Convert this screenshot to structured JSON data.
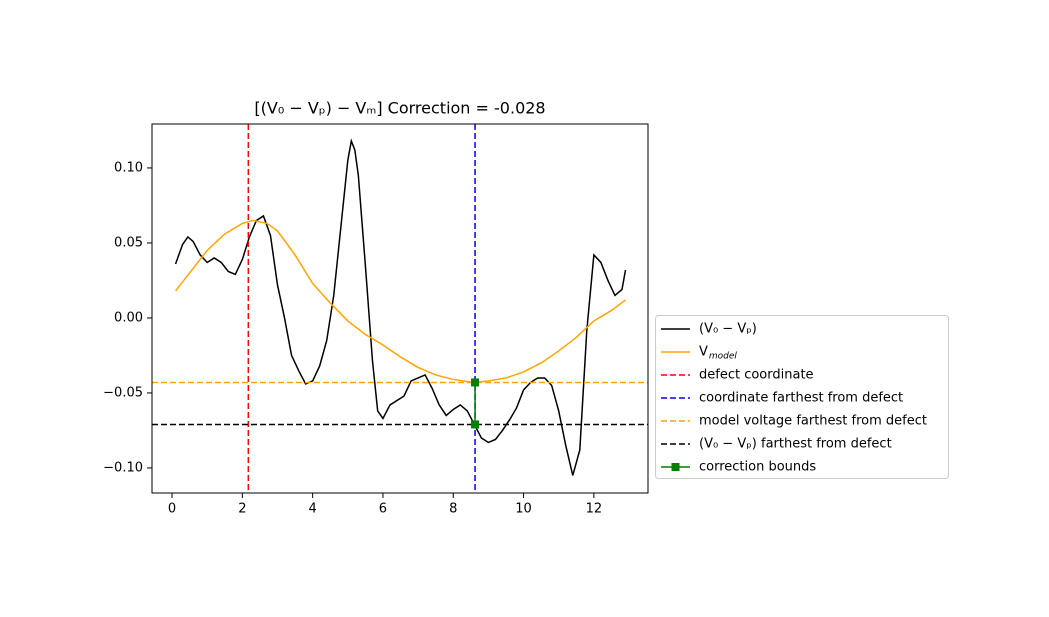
{
  "chart_data": {
    "type": "line",
    "title": "[(V₀ − Vₚ) − Vₘ] Correction = -0.028",
    "xlim": [
      -0.57,
      13.54
    ],
    "ylim": [
      -0.1167,
      0.1293
    ],
    "xticks": [
      0,
      2,
      4,
      6,
      8,
      10,
      12
    ],
    "yticks": [
      {
        "value": 0.1,
        "label": "0.10"
      },
      {
        "value": 0.05,
        "label": "0.05"
      },
      {
        "value": 0,
        "label": "0.00"
      },
      {
        "value": -0.05,
        "label": "−0.05"
      },
      {
        "value": -0.1,
        "label": "−0.10"
      }
    ],
    "grid": false,
    "legend": "right",
    "series": [
      {
        "name": "(V₀ − Vₚ)",
        "color": "#000000",
        "x": [
          0.1,
          0.3,
          0.45,
          0.6,
          0.8,
          1.0,
          1.2,
          1.4,
          1.6,
          1.8,
          2.0,
          2.2,
          2.4,
          2.6,
          2.8,
          3.0,
          3.2,
          3.4,
          3.6,
          3.8,
          4.0,
          4.2,
          4.4,
          4.6,
          4.8,
          5.0,
          5.1,
          5.2,
          5.3,
          5.5,
          5.7,
          5.85,
          6.0,
          6.2,
          6.4,
          6.6,
          6.8,
          7.0,
          7.2,
          7.4,
          7.6,
          7.8,
          8.0,
          8.2,
          8.4,
          8.6,
          8.8,
          9.0,
          9.2,
          9.4,
          9.6,
          9.8,
          10.0,
          10.2,
          10.4,
          10.6,
          10.8,
          11.0,
          11.2,
          11.4,
          11.6,
          11.8,
          12.0,
          12.2,
          12.4,
          12.6,
          12.8,
          12.9
        ],
        "values": [
          0.036,
          0.049,
          0.054,
          0.051,
          0.042,
          0.037,
          0.04,
          0.037,
          0.031,
          0.029,
          0.039,
          0.054,
          0.065,
          0.068,
          0.055,
          0.022,
          0.0,
          -0.025,
          -0.035,
          -0.044,
          -0.042,
          -0.032,
          -0.015,
          0.015,
          0.06,
          0.105,
          0.118,
          0.112,
          0.095,
          0.035,
          -0.028,
          -0.062,
          -0.067,
          -0.058,
          -0.055,
          -0.052,
          -0.042,
          -0.04,
          -0.038,
          -0.047,
          -0.058,
          -0.065,
          -0.061,
          -0.058,
          -0.062,
          -0.071,
          -0.08,
          -0.083,
          -0.081,
          -0.075,
          -0.068,
          -0.06,
          -0.048,
          -0.043,
          -0.04,
          -0.04,
          -0.045,
          -0.062,
          -0.085,
          -0.105,
          -0.088,
          -0.008,
          0.042,
          0.037,
          0.025,
          0.015,
          0.019,
          0.032
        ]
      },
      {
        "name": "V",
        "subscript": "model",
        "color": "#ffa500",
        "x": [
          0.1,
          0.5,
          1,
          1.5,
          2,
          2.3,
          2.7,
          3,
          3.5,
          4,
          4.5,
          5,
          5.5,
          6,
          6.5,
          7,
          7.5,
          8,
          8.6,
          9,
          9.5,
          10,
          10.5,
          11,
          11.5,
          12,
          12.5,
          12.9
        ],
        "values": [
          0.018,
          0.03,
          0.045,
          0.056,
          0.063,
          0.065,
          0.063,
          0.058,
          0.042,
          0.023,
          0.01,
          -0.002,
          -0.011,
          -0.018,
          -0.026,
          -0.033,
          -0.038,
          -0.041,
          -0.043,
          -0.042,
          -0.04,
          -0.036,
          -0.03,
          -0.022,
          -0.013,
          -0.002,
          0.005,
          0.012
        ]
      },
      {
        "name": "defect coordinate",
        "color": "#ff0000",
        "kind": "vline",
        "dashed": true,
        "value": 2.17
      },
      {
        "name": "coordinate farthest from defect",
        "color": "#0000ff",
        "kind": "vline",
        "dashed": true,
        "value": 8.62
      },
      {
        "name": "model voltage farthest from defect",
        "color": "#ffa500",
        "kind": "hline",
        "dashed": true,
        "value": -0.043
      },
      {
        "name": "(V₀ − Vₚ) farthest from defect",
        "color": "#000000",
        "kind": "hline",
        "dashed": true,
        "value": -0.071
      },
      {
        "name": "correction bounds",
        "color": "#008000",
        "marker": "square",
        "x": [
          8.62,
          8.62
        ],
        "values": [
          -0.043,
          -0.071
        ]
      }
    ]
  }
}
